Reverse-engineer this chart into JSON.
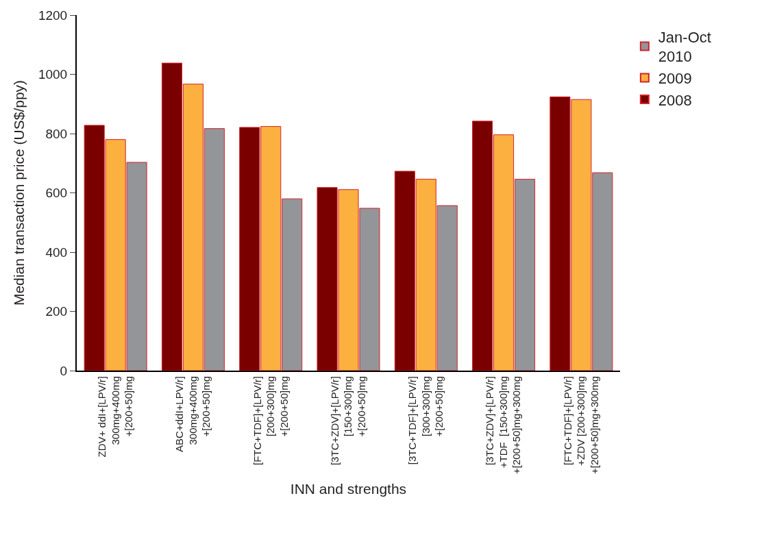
{
  "chart_data": {
    "type": "bar",
    "xlabel": "INN and strengths",
    "ylabel": "Median transaction price (US$/ppy)",
    "categories": [
      "ZDV+ ddI+[LPV/r]\n300mg+400mg\n+[200+50]mg",
      "ABC+ddI+LPV/r]\n300mg+400mg\n+[200+50]mg",
      "[FTC+TDF]+[LPV/r]\n[200+300]mg\n+[200+50]mg",
      "[3TC+ZDV]+[LPV/r]\n[150+300]mg\n+[200+50]mg",
      "[3TC+TDF]+[LPV/r]\n[300+300]mg\n+[200+50]mg",
      "[3TC+ZDV]+[LPV/r]\n+TDF  [150+300]mg\n+[200+50]mg+300mg",
      "[FTC+TDF]+[LPV/r]\n+ZDV [200+300]mg\n+[200+50]mg+300mg"
    ],
    "series": [
      {
        "name": "2008",
        "color": "#7a0000",
        "values": [
          828,
          1038,
          821,
          618,
          673,
          842,
          924
        ]
      },
      {
        "name": "2009",
        "color": "#fbb040",
        "values": [
          780,
          967,
          824,
          611,
          646,
          796,
          915
        ]
      },
      {
        "name": "Jan-Oct\n2010",
        "color": "#939598",
        "values": [
          703,
          817,
          580,
          548,
          557,
          646,
          668
        ]
      }
    ],
    "ylim": [
      0,
      1200
    ],
    "yticks": [
      0,
      200,
      400,
      600,
      800,
      1000,
      1200
    ],
    "legend": "top right"
  }
}
